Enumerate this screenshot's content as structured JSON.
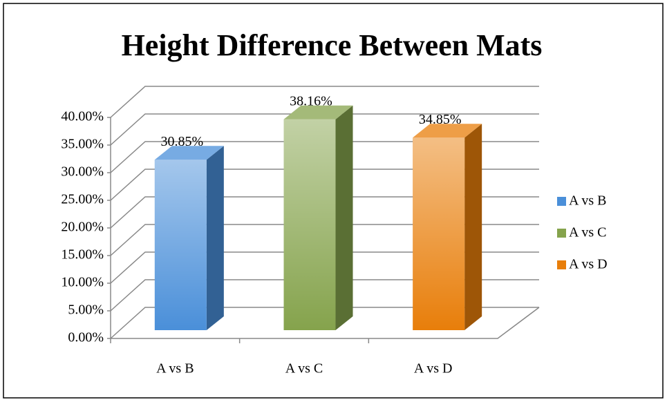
{
  "chart_data": {
    "type": "bar",
    "title": "Height Difference Between Mats",
    "categories": [
      "A vs B",
      "A vs C",
      "A vs D"
    ],
    "values": [
      30.85,
      38.16,
      34.85
    ],
    "value_labels": [
      "30.85%",
      "38.16%",
      "34.85%"
    ],
    "colors": [
      "#4a8fd9",
      "#85a34c",
      "#e87e0a"
    ],
    "ylim": [
      0,
      40
    ],
    "yticks": [
      {
        "value": 0,
        "label": "0.00%"
      },
      {
        "value": 5,
        "label": "5.00%"
      },
      {
        "value": 10,
        "label": "10.00%"
      },
      {
        "value": 15,
        "label": "15.00%"
      },
      {
        "value": 20,
        "label": "20.00%"
      },
      {
        "value": 25,
        "label": "25.00%"
      },
      {
        "value": 30,
        "label": "30.00%"
      },
      {
        "value": 35,
        "label": "35.00%"
      },
      {
        "value": 40,
        "label": "40.00%"
      }
    ],
    "grid": true,
    "legend": "right"
  }
}
